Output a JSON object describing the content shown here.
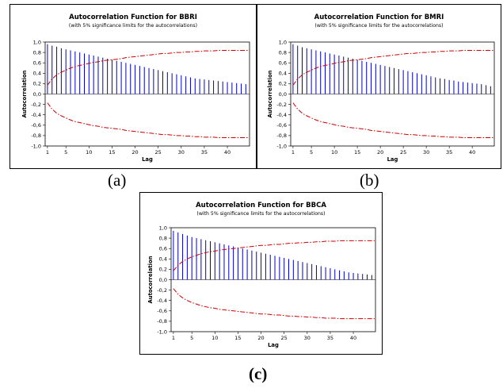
{
  "captions": {
    "a": "(a)",
    "b": "(b)",
    "c": "(c)"
  },
  "colors": {
    "bars": "#0000cc",
    "limits": "#cc0000",
    "axis": "#000000"
  },
  "chart_data": [
    {
      "type": "bar",
      "title": "Autocorrelation Function for BBRI",
      "subtitle": "(with 5% significance limits for the autocorrelations)",
      "xlabel": "Lag",
      "ylabel": "Autocorrelation",
      "ylim": [
        -1.0,
        1.0
      ],
      "yticks": [
        "1,0",
        "0,8",
        "0,6",
        "0,4",
        "0,2",
        "0,0",
        "-0,2",
        "-0,4",
        "-0,6",
        "-0,8",
        "-1,0"
      ],
      "xticks": [
        1,
        5,
        10,
        15,
        20,
        25,
        30,
        35,
        40
      ],
      "lags": [
        1,
        2,
        3,
        4,
        5,
        6,
        7,
        8,
        9,
        10,
        11,
        12,
        13,
        14,
        15,
        16,
        17,
        18,
        19,
        20,
        21,
        22,
        23,
        24,
        25,
        26,
        27,
        28,
        29,
        30,
        31,
        32,
        33,
        34,
        35,
        36,
        37,
        38,
        39,
        40,
        41,
        42,
        43,
        44
      ],
      "values": [
        0.96,
        0.93,
        0.91,
        0.88,
        0.86,
        0.84,
        0.82,
        0.8,
        0.78,
        0.76,
        0.74,
        0.72,
        0.7,
        0.68,
        0.66,
        0.64,
        0.62,
        0.6,
        0.58,
        0.56,
        0.54,
        0.52,
        0.5,
        0.48,
        0.46,
        0.44,
        0.42,
        0.4,
        0.38,
        0.36,
        0.34,
        0.32,
        0.3,
        0.29,
        0.28,
        0.27,
        0.26,
        0.25,
        0.24,
        0.23,
        0.22,
        0.21,
        0.2,
        0.19
      ],
      "significance_limit": [
        0.17,
        0.29,
        0.37,
        0.42,
        0.46,
        0.5,
        0.53,
        0.55,
        0.57,
        0.59,
        0.61,
        0.62,
        0.64,
        0.65,
        0.66,
        0.67,
        0.68,
        0.7,
        0.71,
        0.72,
        0.73,
        0.74,
        0.75,
        0.76,
        0.77,
        0.78,
        0.78,
        0.79,
        0.8,
        0.8,
        0.81,
        0.81,
        0.82,
        0.82,
        0.83,
        0.83,
        0.83,
        0.84,
        0.84,
        0.84,
        0.84,
        0.84,
        0.84,
        0.84
      ]
    },
    {
      "type": "bar",
      "title": "Autocorrelation Function for BMRI",
      "subtitle": "(with 5% significance limits for the autocorrelations)",
      "xlabel": "Lag",
      "ylabel": "Autocorrelation",
      "ylim": [
        -1.0,
        1.0
      ],
      "yticks": [
        "1,0",
        "0,8",
        "0,6",
        "0,4",
        "0,2",
        "0,0",
        "-0,2",
        "-0,4",
        "-0,6",
        "-0,8",
        "-1,0"
      ],
      "xticks": [
        1,
        5,
        10,
        15,
        20,
        25,
        30,
        35,
        40
      ],
      "lags": [
        1,
        2,
        3,
        4,
        5,
        6,
        7,
        8,
        9,
        10,
        11,
        12,
        13,
        14,
        15,
        16,
        17,
        18,
        19,
        20,
        21,
        22,
        23,
        24,
        25,
        26,
        27,
        28,
        29,
        30,
        31,
        32,
        33,
        34,
        35,
        36,
        37,
        38,
        39,
        40,
        41,
        42,
        43,
        44
      ],
      "values": [
        0.96,
        0.93,
        0.9,
        0.88,
        0.86,
        0.84,
        0.82,
        0.8,
        0.78,
        0.76,
        0.74,
        0.72,
        0.7,
        0.68,
        0.66,
        0.64,
        0.62,
        0.6,
        0.58,
        0.56,
        0.54,
        0.52,
        0.5,
        0.48,
        0.46,
        0.44,
        0.42,
        0.4,
        0.38,
        0.36,
        0.34,
        0.32,
        0.3,
        0.29,
        0.27,
        0.26,
        0.24,
        0.23,
        0.22,
        0.21,
        0.2,
        0.19,
        0.17,
        0.15
      ],
      "significance_limit": [
        0.17,
        0.29,
        0.37,
        0.42,
        0.46,
        0.5,
        0.53,
        0.55,
        0.57,
        0.59,
        0.61,
        0.62,
        0.64,
        0.65,
        0.66,
        0.67,
        0.68,
        0.7,
        0.71,
        0.72,
        0.73,
        0.74,
        0.75,
        0.76,
        0.77,
        0.78,
        0.78,
        0.79,
        0.8,
        0.8,
        0.81,
        0.81,
        0.82,
        0.82,
        0.83,
        0.83,
        0.83,
        0.84,
        0.84,
        0.84,
        0.84,
        0.84,
        0.84,
        0.84
      ]
    },
    {
      "type": "bar",
      "title": "Autocorrelation Function for BBCA",
      "subtitle": "(with 5% significance limits for the autocorrelations)",
      "xlabel": "Lag",
      "ylabel": "Autocorrelation",
      "ylim": [
        -1.0,
        1.0
      ],
      "yticks": [
        "1,0",
        "0,8",
        "0,6",
        "0,4",
        "0,2",
        "0,0",
        "-0,2",
        "-0,4",
        "-0,6",
        "-0,8",
        "-1,0"
      ],
      "xticks": [
        1,
        5,
        10,
        15,
        20,
        25,
        30,
        35,
        40
      ],
      "lags": [
        1,
        2,
        3,
        4,
        5,
        6,
        7,
        8,
        9,
        10,
        11,
        12,
        13,
        14,
        15,
        16,
        17,
        18,
        19,
        20,
        21,
        22,
        23,
        24,
        25,
        26,
        27,
        28,
        29,
        30,
        31,
        32,
        33,
        34,
        35,
        36,
        37,
        38,
        39,
        40,
        41,
        42,
        43,
        44
      ],
      "values": [
        0.94,
        0.91,
        0.88,
        0.85,
        0.82,
        0.8,
        0.78,
        0.76,
        0.74,
        0.72,
        0.7,
        0.68,
        0.66,
        0.64,
        0.62,
        0.6,
        0.58,
        0.56,
        0.54,
        0.52,
        0.5,
        0.48,
        0.46,
        0.44,
        0.42,
        0.4,
        0.38,
        0.36,
        0.34,
        0.32,
        0.3,
        0.28,
        0.26,
        0.24,
        0.22,
        0.2,
        0.18,
        0.16,
        0.14,
        0.13,
        0.12,
        0.11,
        0.1,
        0.09
      ],
      "significance_limit": [
        0.17,
        0.28,
        0.35,
        0.4,
        0.44,
        0.47,
        0.5,
        0.52,
        0.54,
        0.55,
        0.57,
        0.58,
        0.59,
        0.6,
        0.61,
        0.62,
        0.63,
        0.64,
        0.65,
        0.66,
        0.66,
        0.67,
        0.68,
        0.68,
        0.69,
        0.7,
        0.7,
        0.71,
        0.71,
        0.72,
        0.72,
        0.73,
        0.73,
        0.74,
        0.74,
        0.74,
        0.75,
        0.75,
        0.75,
        0.75,
        0.75,
        0.75,
        0.75,
        0.75
      ]
    }
  ]
}
